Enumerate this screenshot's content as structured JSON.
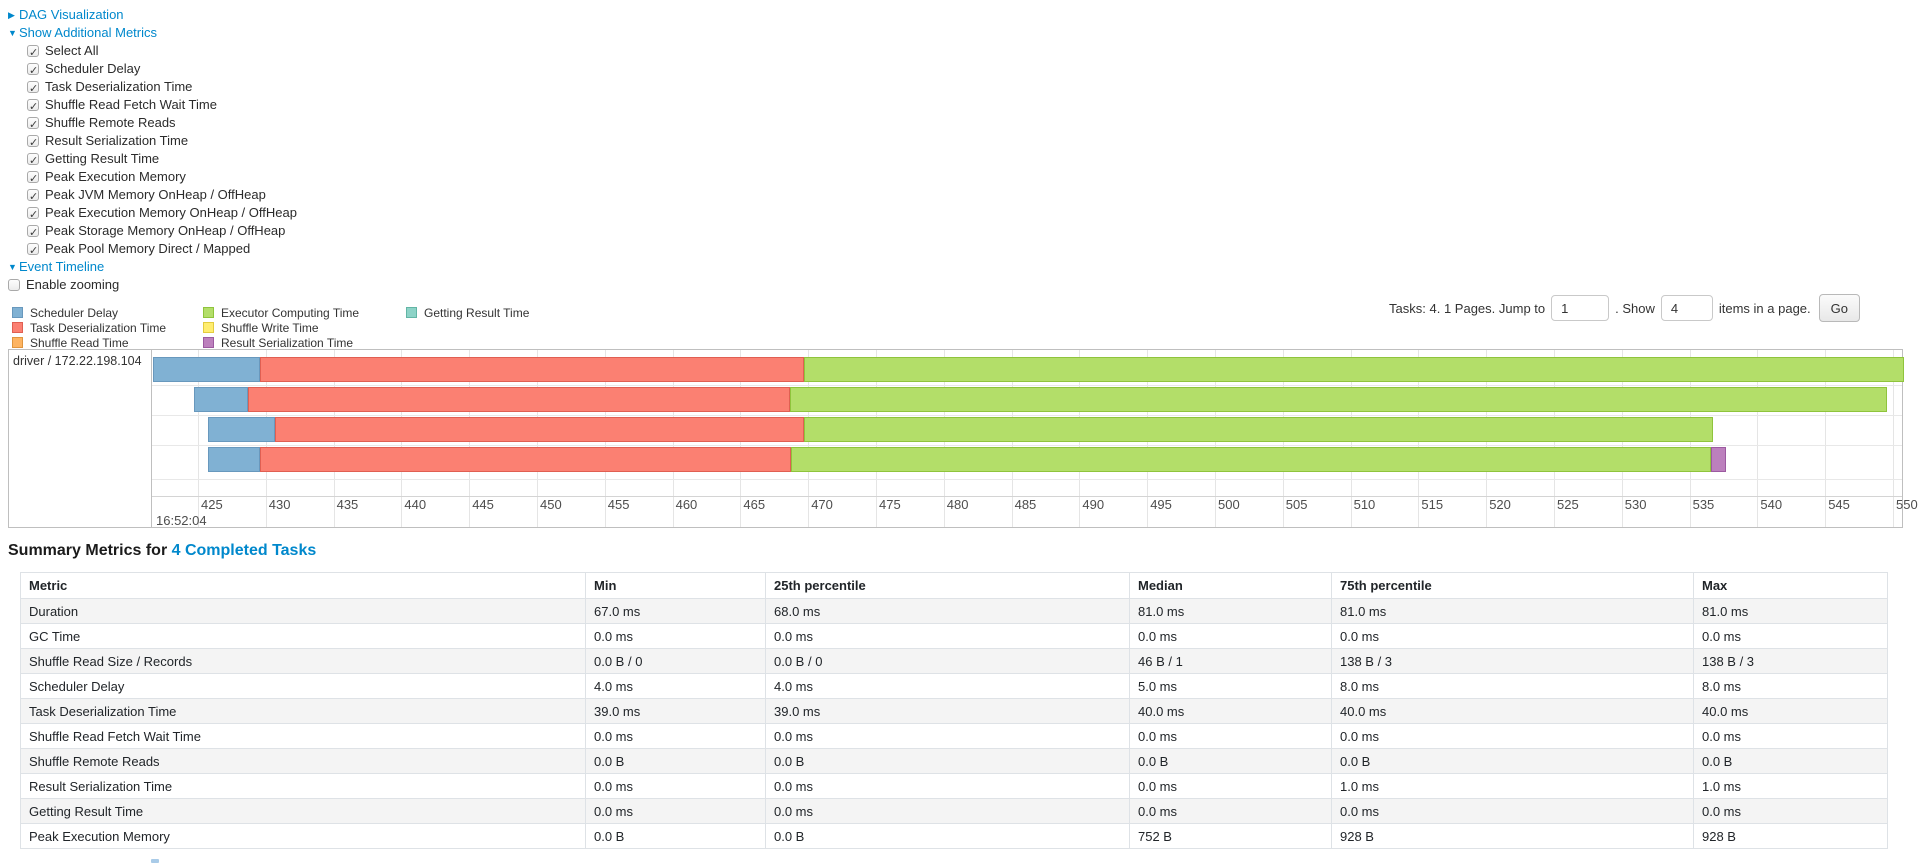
{
  "colors": {
    "link_blue": "#0088cc",
    "palette": {
      "scheduler_delay": {
        "label": "Scheduler Delay",
        "fill": "#80B1D3",
        "border": "#6898BD"
      },
      "task_deserialization": {
        "label": "Task Deserialization Time",
        "fill": "#FB8072",
        "border": "#E05F52"
      },
      "shuffle_read": {
        "label": "Shuffle Read Time",
        "fill": "#FDB462",
        "border": "#E0953E"
      },
      "executor_computing": {
        "label": "Executor Computing Time",
        "fill": "#B3DE69",
        "border": "#8FC43C"
      },
      "shuffle_write": {
        "label": "Shuffle Write Time",
        "fill": "#FFED6F",
        "border": "#E3CC3F"
      },
      "result_serialization": {
        "label": "Result Serialization Time",
        "fill": "#BC80BD",
        "border": "#9C5AA0"
      },
      "getting_result": {
        "label": "Getting Result Time",
        "fill": "#8DD3C7",
        "border": "#62B5A5"
      }
    }
  },
  "controls": {
    "dag": {
      "arrow": "▶",
      "label": "DAG Visualization",
      "expanded": false
    },
    "metrics": {
      "arrow": "▼",
      "label": "Show Additional Metrics",
      "expanded": true
    },
    "checkboxes": [
      {
        "label": "Select All",
        "checked": true
      },
      {
        "label": "Scheduler Delay",
        "checked": true
      },
      {
        "label": "Task Deserialization Time",
        "checked": true
      },
      {
        "label": "Shuffle Read Fetch Wait Time",
        "checked": true
      },
      {
        "label": "Shuffle Remote Reads",
        "checked": true
      },
      {
        "label": "Result Serialization Time",
        "checked": true
      },
      {
        "label": "Getting Result Time",
        "checked": true
      },
      {
        "label": "Peak Execution Memory",
        "checked": true
      },
      {
        "label": "Peak JVM Memory OnHeap / OffHeap",
        "checked": true
      },
      {
        "label": "Peak Execution Memory OnHeap / OffHeap",
        "checked": true
      },
      {
        "label": "Peak Storage Memory OnHeap / OffHeap",
        "checked": true
      },
      {
        "label": "Peak Pool Memory Direct / Mapped",
        "checked": true
      }
    ],
    "event_timeline": {
      "arrow": "▼",
      "label": "Event Timeline",
      "expanded": true
    },
    "enable_zooming": {
      "label": "Enable zooming",
      "checked": false
    }
  },
  "pagination": {
    "prefix": "Tasks: 4. 1 Pages. Jump to",
    "jump_value": "1",
    "mid": ". Show",
    "show_value": "4",
    "suffix": "items in a page.",
    "go_label": "Go"
  },
  "legend": {
    "columns": [
      [
        "scheduler_delay",
        "task_deserialization",
        "shuffle_read"
      ],
      [
        "executor_computing",
        "shuffle_write",
        "result_serialization"
      ],
      [
        "getting_result"
      ]
    ]
  },
  "timeline": {
    "row_label": "driver / 172.22.198.104",
    "axis": {
      "tick_start": 425,
      "tick_end": 550,
      "tick_step": 5,
      "major_label": "16:52:04"
    },
    "bars": [
      {
        "name": "task-0",
        "segments": [
          {
            "type": "scheduler_delay",
            "from": 421.7,
            "to": 429.6
          },
          {
            "type": "task_deserialization",
            "from": 429.6,
            "to": 469.7
          },
          {
            "type": "executor_computing",
            "from": 469.7,
            "to": 550.8
          }
        ]
      },
      {
        "name": "task-1",
        "segments": [
          {
            "type": "scheduler_delay",
            "from": 424.7,
            "to": 428.7
          },
          {
            "type": "task_deserialization",
            "from": 428.7,
            "to": 468.7
          },
          {
            "type": "executor_computing",
            "from": 468.7,
            "to": 549.6
          }
        ]
      },
      {
        "name": "task-2",
        "segments": [
          {
            "type": "scheduler_delay",
            "from": 425.7,
            "to": 430.7
          },
          {
            "type": "task_deserialization",
            "from": 430.7,
            "to": 469.7
          },
          {
            "type": "executor_computing",
            "from": 469.7,
            "to": 536.7
          }
        ]
      },
      {
        "name": "task-3",
        "segments": [
          {
            "type": "scheduler_delay",
            "from": 425.7,
            "to": 429.6
          },
          {
            "type": "task_deserialization",
            "from": 429.6,
            "to": 468.7
          },
          {
            "type": "executor_computing",
            "from": 468.7,
            "to": 536.6
          },
          {
            "type": "result_serialization",
            "from": 536.6,
            "to": 537.7
          }
        ]
      }
    ]
  },
  "summary": {
    "heading_prefix": "Summary Metrics for ",
    "heading_link": "4 Completed Tasks",
    "table": {
      "headers": [
        "Metric",
        "Min",
        "25th percentile",
        "Median",
        "75th percentile",
        "Max"
      ],
      "rows": [
        {
          "metric": "Duration",
          "values": [
            "67.0 ms",
            "68.0 ms",
            "81.0 ms",
            "81.0 ms",
            "81.0 ms"
          ]
        },
        {
          "metric": "GC Time",
          "values": [
            "0.0 ms",
            "0.0 ms",
            "0.0 ms",
            "0.0 ms",
            "0.0 ms"
          ]
        },
        {
          "metric": "Shuffle Read Size / Records",
          "values": [
            "0.0 B / 0",
            "0.0 B / 0",
            "46 B / 1",
            "138 B / 3",
            "138 B / 3"
          ]
        },
        {
          "metric": "Scheduler Delay",
          "values": [
            "4.0 ms",
            "4.0 ms",
            "5.0 ms",
            "8.0 ms",
            "8.0 ms"
          ]
        },
        {
          "metric": "Task Deserialization Time",
          "values": [
            "39.0 ms",
            "39.0 ms",
            "40.0 ms",
            "40.0 ms",
            "40.0 ms"
          ]
        },
        {
          "metric": "Shuffle Read Fetch Wait Time",
          "values": [
            "0.0 ms",
            "0.0 ms",
            "0.0 ms",
            "0.0 ms",
            "0.0 ms"
          ]
        },
        {
          "metric": "Shuffle Remote Reads",
          "values": [
            "0.0 B",
            "0.0 B",
            "0.0 B",
            "0.0 B",
            "0.0 B"
          ]
        },
        {
          "metric": "Result Serialization Time",
          "values": [
            "0.0 ms",
            "0.0 ms",
            "0.0 ms",
            "1.0 ms",
            "1.0 ms"
          ]
        },
        {
          "metric": "Getting Result Time",
          "values": [
            "0.0 ms",
            "0.0 ms",
            "0.0 ms",
            "0.0 ms",
            "0.0 ms"
          ]
        },
        {
          "metric": "Peak Execution Memory",
          "values": [
            "0.0 B",
            "0.0 B",
            "752 B",
            "928 B",
            "928 B"
          ]
        }
      ]
    }
  }
}
